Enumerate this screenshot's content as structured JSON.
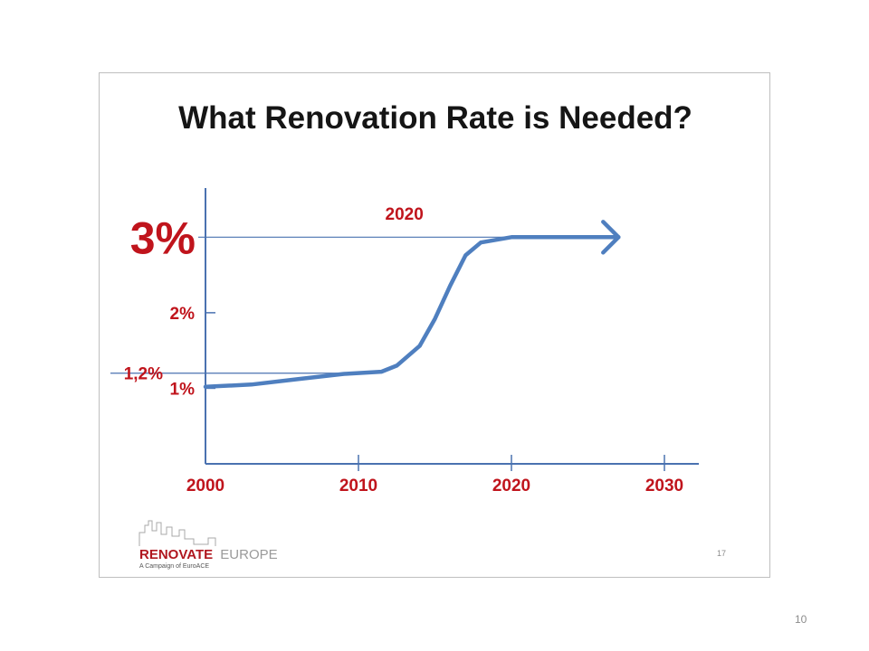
{
  "slide": {
    "page_number": "10",
    "inner_page_number": "17"
  },
  "logo": {
    "name_bold": "RENOVATE",
    "name_light": "EUROPE",
    "tagline": "A Campaign of EuroACE"
  },
  "colors": {
    "accent_red": "#c0141c",
    "line_blue": "#4f7fbf",
    "axis_blue": "#4a72b0",
    "title": "#151515"
  },
  "chart_data": {
    "type": "line",
    "title": "What Renovation Rate is Needed?",
    "xlabel": "",
    "ylabel": "",
    "xlim": [
      2000,
      2033
    ],
    "ylim": [
      0,
      3.65
    ],
    "x_ticks": [
      {
        "value": 2000,
        "label": "2000"
      },
      {
        "value": 2010,
        "label": "2010"
      },
      {
        "value": 2020,
        "label": "2020"
      },
      {
        "value": 2030,
        "label": "2030"
      }
    ],
    "y_ticks": [
      {
        "value": 1,
        "label": "1%"
      },
      {
        "value": 2,
        "label": "2%"
      }
    ],
    "reference_lines": [
      {
        "y": 3.0,
        "label": "3%",
        "emphasis": "large"
      },
      {
        "y": 1.2,
        "label": "1,2%",
        "emphasis": "normal"
      }
    ],
    "annotation": {
      "text": "2020",
      "x": 2013,
      "y": 3.3
    },
    "series": [
      {
        "name": "",
        "arrow_end": true,
        "x": [
          2000,
          2003,
          2006,
          2009,
          2011.5,
          2012.5,
          2014,
          2015,
          2016,
          2017,
          2018,
          2020,
          2024,
          2027
        ],
        "y": [
          1.02,
          1.05,
          1.12,
          1.19,
          1.22,
          1.3,
          1.56,
          1.92,
          2.36,
          2.76,
          2.93,
          3.0,
          3.0,
          3.0
        ]
      }
    ],
    "grid": false,
    "legend": "none"
  }
}
